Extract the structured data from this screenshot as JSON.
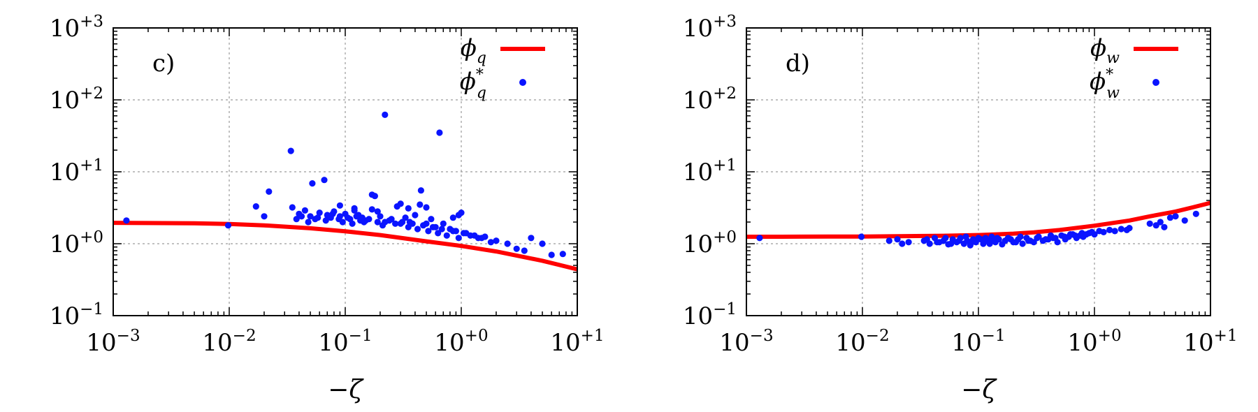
{
  "colors": {
    "curve": "#ff0000",
    "points": "#0a14ff",
    "grid": "#9a9a9a"
  },
  "chart_data": [
    {
      "type": "scatter",
      "panel_label": "c)",
      "xlabel": "−ζ",
      "ylabel": "",
      "xscale": "log",
      "yscale": "log",
      "xlim": [
        0.001,
        10
      ],
      "ylim": [
        0.1,
        1000
      ],
      "grid": true,
      "legend_position": "top-right",
      "x_tick_labels": [
        {
          "value": 0.001,
          "base": "10",
          "exp": "−3"
        },
        {
          "value": 0.01,
          "base": "10",
          "exp": "−2"
        },
        {
          "value": 0.1,
          "base": "10",
          "exp": "−1"
        },
        {
          "value": 1,
          "base": "10",
          "exp": "+0"
        },
        {
          "value": 10,
          "base": "10",
          "exp": "+1"
        }
      ],
      "y_tick_labels": [
        {
          "value": 0.1,
          "base": "10",
          "exp": "−1"
        },
        {
          "value": 1,
          "base": "10",
          "exp": "+0"
        },
        {
          "value": 10,
          "base": "10",
          "exp": "+1"
        },
        {
          "value": 100,
          "base": "10",
          "exp": "+2"
        },
        {
          "value": 1000,
          "base": "10",
          "exp": "+3"
        }
      ],
      "legend": [
        {
          "symbol": "ϕ",
          "sub": "q",
          "sup": "",
          "kind": "line"
        },
        {
          "symbol": "ϕ",
          "sub": "q",
          "sup": "*",
          "kind": "point"
        }
      ],
      "series": [
        {
          "name": "phi_q",
          "kind": "line",
          "x": [
            0.001,
            0.002,
            0.005,
            0.01,
            0.02,
            0.05,
            0.1,
            0.2,
            0.5,
            1,
            2,
            5,
            10
          ],
          "y": [
            1.95,
            1.94,
            1.92,
            1.88,
            1.8,
            1.64,
            1.49,
            1.32,
            1.08,
            0.93,
            0.78,
            0.58,
            0.44
          ]
        },
        {
          "name": "phi_q_star",
          "kind": "scatter",
          "x": [
            0.0013,
            0.0098,
            0.017,
            0.02,
            0.022,
            0.034,
            0.052,
            0.066,
            0.22,
            0.65,
            0.035,
            0.04,
            0.045,
            0.05,
            0.055,
            0.06,
            0.07,
            0.075,
            0.08,
            0.09,
            0.1,
            0.11,
            0.12,
            0.13,
            0.14,
            0.15,
            0.17,
            0.18,
            0.2,
            0.22,
            0.25,
            0.28,
            0.3,
            0.33,
            0.36,
            0.4,
            0.45,
            0.5,
            0.55,
            0.6,
            0.7,
            0.8,
            0.9,
            1.0,
            1.1,
            1.2,
            1.4,
            1.6,
            1.8,
            2.0,
            2.5,
            3.0,
            3.5,
            4.0,
            5.0,
            6.0,
            7.5,
            0.038,
            0.042,
            0.048,
            0.058,
            0.068,
            0.078,
            0.088,
            0.095,
            0.105,
            0.115,
            0.125,
            0.135,
            0.145,
            0.16,
            0.19,
            0.21,
            0.24,
            0.27,
            0.31,
            0.35,
            0.38,
            0.42,
            0.47,
            0.52,
            0.57,
            0.63,
            0.68,
            0.75,
            0.85,
            0.95,
            1.05,
            1.3,
            1.5,
            0.17,
            0.19,
            0.3,
            0.35,
            0.44,
            0.5,
            0.85,
            0.95,
            0.12,
            0.09
          ],
          "y": [
            2.1,
            1.8,
            3.3,
            2.4,
            5.3,
            19.5,
            6.9,
            7.7,
            62,
            35,
            3.2,
            2.6,
            2.9,
            2.4,
            2.2,
            2.7,
            2.5,
            2.3,
            2.8,
            2.4,
            2.6,
            2.2,
            2.9,
            2.5,
            2.3,
            2.1,
            4.8,
            4.6,
            2.4,
            2.0,
            2.2,
            3.3,
            1.9,
            2.3,
            2.0,
            2.5,
            5.5,
            1.9,
            2.2,
            1.7,
            1.9,
            1.6,
            1.5,
            2.7,
            1.4,
            1.3,
            1.2,
            1.25,
            1.05,
            1.1,
            1.0,
            0.85,
            0.8,
            1.2,
            1.0,
            0.7,
            0.72,
            2.2,
            2.4,
            2.0,
            2.3,
            2.1,
            2.6,
            2.2,
            2.0,
            2.3,
            1.9,
            2.4,
            2.1,
            2.0,
            2.2,
            2.0,
            1.8,
            2.1,
            1.9,
            2.0,
            1.7,
            1.9,
            1.6,
            1.8,
            1.5,
            1.7,
            1.4,
            1.6,
            1.3,
            1.5,
            1.2,
            1.4,
            1.3,
            1.2,
            3.0,
            2.8,
            3.6,
            3.1,
            3.5,
            3.2,
            2.3,
            2.5,
            3.1,
            3.4
          ]
        }
      ]
    },
    {
      "type": "scatter",
      "panel_label": "d)",
      "xlabel": "−ζ",
      "ylabel": "",
      "xscale": "log",
      "yscale": "log",
      "xlim": [
        0.001,
        10
      ],
      "ylim": [
        0.1,
        1000
      ],
      "grid": true,
      "legend_position": "top-right",
      "x_tick_labels": [
        {
          "value": 0.001,
          "base": "10",
          "exp": "−3"
        },
        {
          "value": 0.01,
          "base": "10",
          "exp": "−2"
        },
        {
          "value": 0.1,
          "base": "10",
          "exp": "−1"
        },
        {
          "value": 1,
          "base": "10",
          "exp": "+0"
        },
        {
          "value": 10,
          "base": "10",
          "exp": "+1"
        }
      ],
      "y_tick_labels": [
        {
          "value": 0.1,
          "base": "10",
          "exp": "−1"
        },
        {
          "value": 1,
          "base": "10",
          "exp": "+0"
        },
        {
          "value": 10,
          "base": "10",
          "exp": "+1"
        },
        {
          "value": 100,
          "base": "10",
          "exp": "+2"
        },
        {
          "value": 1000,
          "base": "10",
          "exp": "+3"
        }
      ],
      "legend": [
        {
          "symbol": "ϕ",
          "sub": "w",
          "sup": "",
          "kind": "line"
        },
        {
          "symbol": "ϕ",
          "sub": "w",
          "sup": "*",
          "kind": "point"
        }
      ],
      "series": [
        {
          "name": "phi_w",
          "kind": "line",
          "x": [
            0.001,
            0.002,
            0.005,
            0.01,
            0.02,
            0.05,
            0.1,
            0.2,
            0.3,
            0.5,
            1,
            2,
            3,
            5,
            7,
            10
          ],
          "y": [
            1.25,
            1.25,
            1.26,
            1.26,
            1.27,
            1.29,
            1.32,
            1.38,
            1.44,
            1.55,
            1.78,
            2.1,
            2.4,
            2.8,
            3.2,
            3.7
          ]
        },
        {
          "name": "phi_w_star",
          "kind": "scatter",
          "x": [
            0.0013,
            0.0098,
            0.017,
            0.02,
            0.022,
            0.025,
            0.034,
            0.038,
            0.042,
            0.046,
            0.05,
            0.055,
            0.06,
            0.065,
            0.07,
            0.075,
            0.08,
            0.085,
            0.09,
            0.095,
            0.1,
            0.11,
            0.12,
            0.13,
            0.14,
            0.15,
            0.16,
            0.17,
            0.18,
            0.2,
            0.22,
            0.24,
            0.26,
            0.28,
            0.3,
            0.33,
            0.36,
            0.4,
            0.44,
            0.48,
            0.52,
            0.56,
            0.6,
            0.65,
            0.7,
            0.75,
            0.8,
            0.9,
            1.0,
            1.1,
            1.2,
            1.35,
            1.5,
            1.7,
            1.9,
            2.0,
            3.0,
            3.4,
            3.7,
            4.0,
            4.5,
            5.0,
            6.0,
            7.5,
            0.036,
            0.044,
            0.052,
            0.058,
            0.068,
            0.078,
            0.088,
            0.105,
            0.115,
            0.125,
            0.135,
            0.145,
            0.19,
            0.21,
            0.23,
            0.27,
            0.32,
            0.38,
            0.42,
            0.46,
            0.55,
            0.62,
            0.68,
            0.78,
            0.85,
            0.95
          ],
          "y": [
            1.2,
            1.25,
            1.1,
            1.15,
            1.0,
            1.05,
            1.1,
            1.0,
            1.2,
            1.05,
            1.1,
            0.98,
            1.15,
            1.05,
            1.2,
            1.0,
            1.1,
            0.95,
            1.15,
            1.05,
            1.2,
            1.0,
            1.1,
            1.25,
            1.05,
            1.15,
            0.98,
            1.1,
            1.2,
            1.05,
            1.15,
            1.0,
            1.2,
            1.1,
            1.05,
            1.25,
            1.1,
            1.15,
            1.2,
            1.05,
            1.3,
            1.15,
            1.25,
            1.35,
            1.2,
            1.3,
            1.25,
            1.4,
            1.35,
            1.5,
            1.45,
            1.55,
            1.5,
            1.6,
            1.55,
            1.65,
            1.9,
            1.8,
            2.0,
            1.7,
            2.3,
            2.4,
            2.1,
            2.6,
            1.15,
            1.05,
            1.2,
            1.0,
            1.1,
            1.25,
            1.05,
            1.15,
            1.2,
            1.0,
            1.1,
            1.2,
            1.15,
            1.05,
            1.25,
            1.1,
            1.2,
            1.15,
            1.3,
            1.2,
            1.25,
            1.35,
            1.3,
            1.4,
            1.35,
            1.45
          ]
        }
      ]
    }
  ]
}
